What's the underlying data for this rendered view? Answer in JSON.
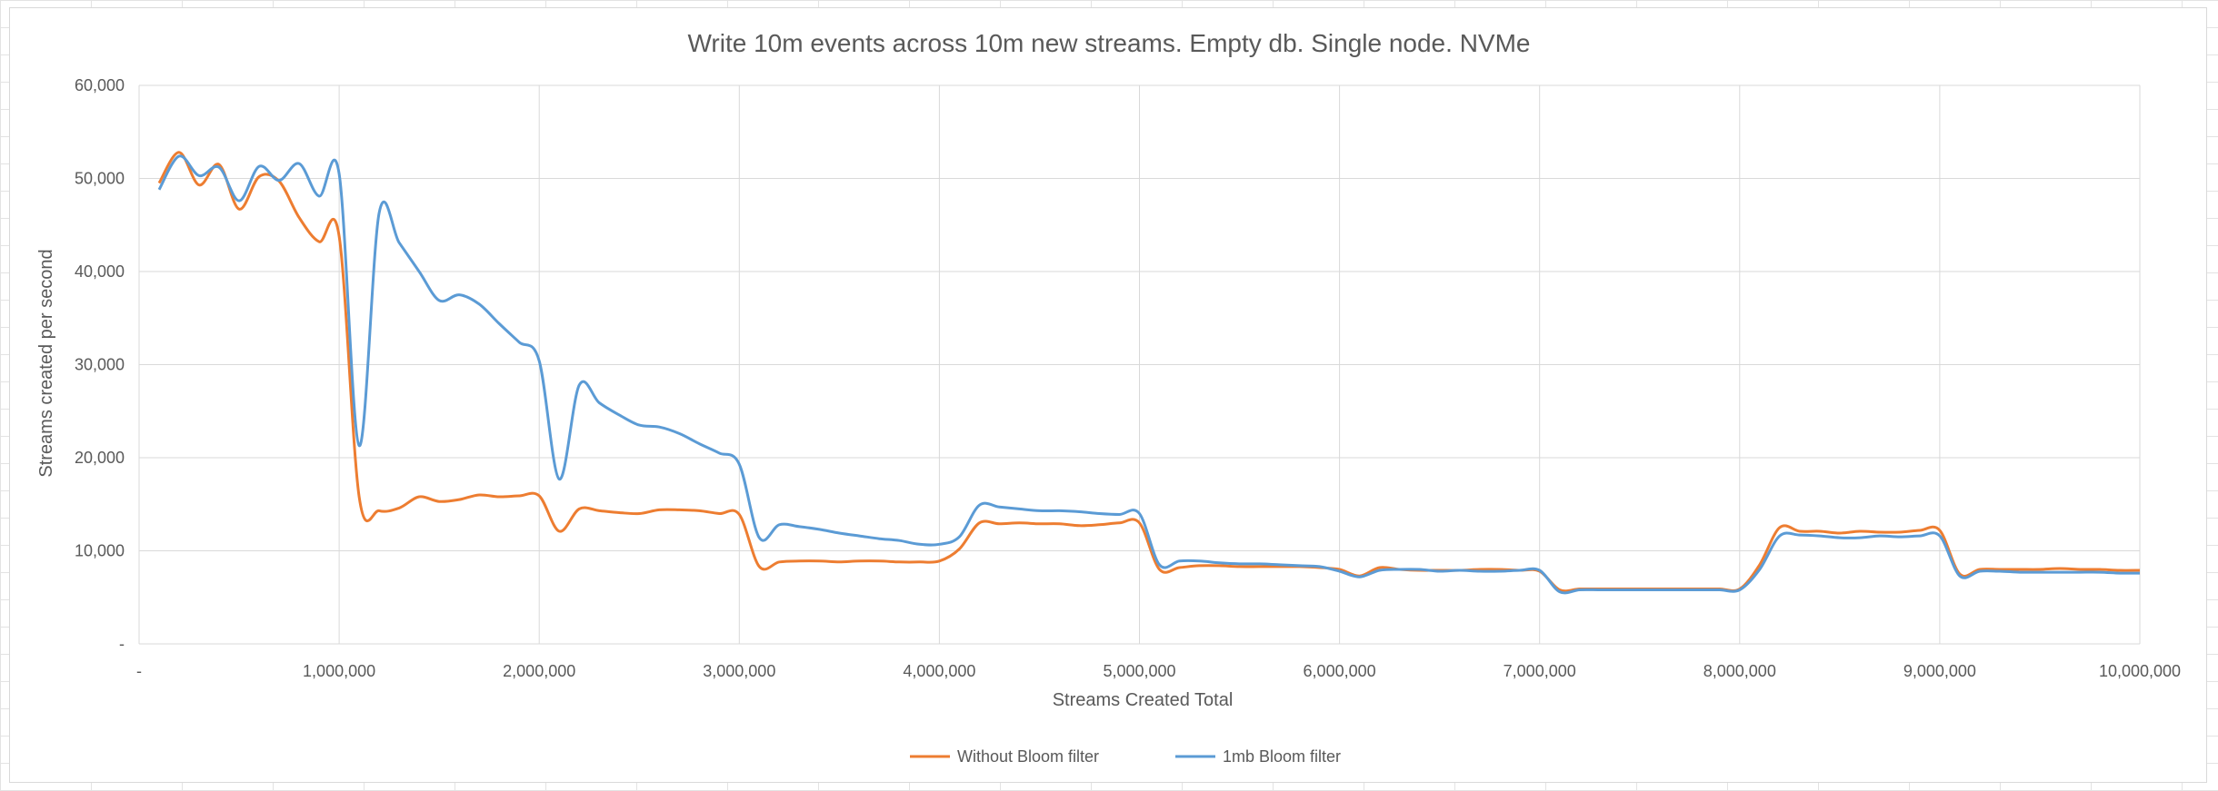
{
  "chart_data": {
    "type": "line",
    "title": "Write 10m events across 10m new streams. Empty db. Single node. NVMe",
    "xlabel": "Streams Created Total",
    "ylabel": "Streams created per second",
    "xlim": [
      0,
      10000000
    ],
    "ylim": [
      0,
      60000
    ],
    "grid": true,
    "legend_position": "bottom",
    "x_ticks": [
      {
        "value": 0,
        "label": "-"
      },
      {
        "value": 1000000,
        "label": "1,000,000"
      },
      {
        "value": 2000000,
        "label": "2,000,000"
      },
      {
        "value": 3000000,
        "label": "3,000,000"
      },
      {
        "value": 4000000,
        "label": "4,000,000"
      },
      {
        "value": 5000000,
        "label": "5,000,000"
      },
      {
        "value": 6000000,
        "label": "6,000,000"
      },
      {
        "value": 7000000,
        "label": "7,000,000"
      },
      {
        "value": 8000000,
        "label": "8,000,000"
      },
      {
        "value": 9000000,
        "label": "9,000,000"
      },
      {
        "value": 10000000,
        "label": "10,000,000"
      }
    ],
    "y_ticks": [
      {
        "value": 0,
        "label": "-"
      },
      {
        "value": 10000,
        "label": "10,000"
      },
      {
        "value": 20000,
        "label": "20,000"
      },
      {
        "value": 30000,
        "label": "30,000"
      },
      {
        "value": 40000,
        "label": "40,000"
      },
      {
        "value": 50000,
        "label": "50,000"
      },
      {
        "value": 60000,
        "label": "60,000"
      }
    ],
    "x": [
      100000,
      200000,
      300000,
      400000,
      500000,
      600000,
      700000,
      800000,
      900000,
      1000000,
      1100000,
      1200000,
      1300000,
      1400000,
      1500000,
      1600000,
      1700000,
      1800000,
      1900000,
      2000000,
      2100000,
      2200000,
      2300000,
      2400000,
      2500000,
      2600000,
      2700000,
      2800000,
      2900000,
      3000000,
      3100000,
      3200000,
      3300000,
      3400000,
      3500000,
      3600000,
      3700000,
      3800000,
      3900000,
      4000000,
      4100000,
      4200000,
      4300000,
      4400000,
      4500000,
      4600000,
      4700000,
      4800000,
      4900000,
      5000000,
      5100000,
      5200000,
      5300000,
      5400000,
      5500000,
      5600000,
      5700000,
      5800000,
      5900000,
      6000000,
      6100000,
      6200000,
      6300000,
      6400000,
      6500000,
      6600000,
      6700000,
      6800000,
      6900000,
      7000000,
      7100000,
      7200000,
      7300000,
      7400000,
      7500000,
      7600000,
      7700000,
      7800000,
      7900000,
      8000000,
      8100000,
      8200000,
      8300000,
      8400000,
      8500000,
      8600000,
      8700000,
      8800000,
      8900000,
      9000000,
      9100000,
      9200000,
      9300000,
      9400000,
      9500000,
      9600000,
      9700000,
      9800000,
      9900000,
      10000000
    ],
    "series": [
      {
        "name": "Without Bloom filter",
        "color": "#ED7D31",
        "values": [
          49500,
          52800,
          49300,
          51500,
          46700,
          50200,
          49700,
          45800,
          43200,
          43800,
          15800,
          14300,
          14600,
          15800,
          15300,
          15500,
          16000,
          15800,
          15900,
          15900,
          12100,
          14500,
          14300,
          14100,
          14000,
          14400,
          14400,
          14300,
          14000,
          13900,
          8300,
          8800,
          8900,
          8900,
          8800,
          8900,
          8900,
          8800,
          8800,
          8900,
          10200,
          13000,
          12900,
          13000,
          12900,
          12900,
          12700,
          12800,
          13000,
          13000,
          8000,
          8200,
          8400,
          8400,
          8300,
          8300,
          8300,
          8300,
          8200,
          8000,
          7300,
          8200,
          8000,
          7900,
          7900,
          7900,
          8000,
          8000,
          7900,
          7800,
          5800,
          5900,
          5900,
          5900,
          5900,
          5900,
          5900,
          5900,
          5900,
          5900,
          8500,
          12500,
          12100,
          12100,
          11900,
          12100,
          12000,
          12000,
          12200,
          12200,
          7500,
          8000,
          8000,
          8000,
          8000,
          8100,
          8000,
          8000,
          7900,
          7900
        ]
      },
      {
        "name": "1mb Bloom filter",
        "color": "#5B9BD5",
        "values": [
          48800,
          52400,
          50300,
          51200,
          47600,
          51300,
          49800,
          51600,
          48100,
          50500,
          21300,
          46300,
          43100,
          40000,
          36900,
          37500,
          36500,
          34400,
          32400,
          30400,
          17700,
          27800,
          25900,
          24600,
          23500,
          23300,
          22600,
          21500,
          20500,
          19300,
          11400,
          12800,
          12600,
          12300,
          11900,
          11600,
          11300,
          11100,
          10700,
          10700,
          11500,
          14900,
          14700,
          14500,
          14300,
          14300,
          14200,
          14000,
          13900,
          14000,
          8500,
          8900,
          8900,
          8700,
          8600,
          8600,
          8500,
          8400,
          8300,
          7800,
          7200,
          7900,
          8000,
          8000,
          7800,
          7900,
          7800,
          7800,
          7900,
          7900,
          5600,
          5800,
          5800,
          5800,
          5800,
          5800,
          5800,
          5800,
          5800,
          5800,
          8000,
          11600,
          11700,
          11600,
          11400,
          11400,
          11600,
          11500,
          11600,
          11600,
          7300,
          7800,
          7800,
          7700,
          7700,
          7700,
          7700,
          7700,
          7600,
          7600
        ]
      }
    ]
  }
}
